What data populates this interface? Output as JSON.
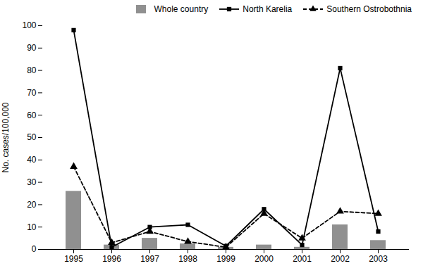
{
  "chart_data": {
    "type": "bar",
    "categories": [
      "1995",
      "1996",
      "1997",
      "1998",
      "1999",
      "2000",
      "2001",
      "2002",
      "2003"
    ],
    "ylabel": "No. cases/100,000",
    "ylim": [
      0,
      100
    ],
    "yticks": [
      0,
      10,
      20,
      30,
      40,
      50,
      60,
      70,
      80,
      90,
      100
    ],
    "grid": false,
    "legend": "upper right",
    "series": [
      {
        "name": "Whole country",
        "type": "bar",
        "color": "#909090",
        "values": [
          26,
          2,
          5,
          2.5,
          1,
          2,
          1,
          11,
          4
        ]
      },
      {
        "name": "North Karelia",
        "type": "line",
        "color": "#000000",
        "marker": "square",
        "line_style": "solid",
        "values": [
          98,
          1,
          10,
          11,
          1.5,
          18,
          2,
          81,
          8
        ]
      },
      {
        "name": "Southern Ostrobothnia",
        "type": "line",
        "color": "#000000",
        "marker": "triangle",
        "line_style": "dashed",
        "values": [
          37,
          3,
          8,
          3.5,
          1,
          16,
          5,
          17,
          16
        ]
      }
    ]
  }
}
